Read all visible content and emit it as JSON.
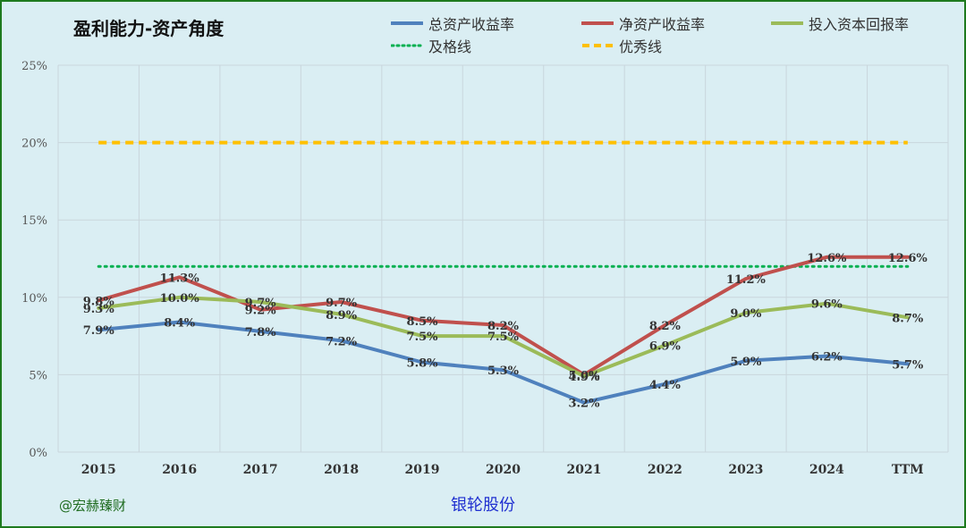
{
  "title": "盈利能力-资产角度",
  "legend": [
    {
      "label": "总资产收益率",
      "color": "#4f81bd",
      "style": "solid"
    },
    {
      "label": "净资产收益率",
      "color": "#c0504d",
      "style": "solid"
    },
    {
      "label": "投入资本回报率",
      "color": "#9bbb59",
      "style": "solid"
    },
    {
      "label": "及格线",
      "color": "#00b050",
      "style": "dotted"
    },
    {
      "label": "优秀线",
      "color": "#ffc000",
      "style": "dashed"
    }
  ],
  "footer": {
    "watermark": "@宏赫臻财",
    "company": "银轮股份"
  },
  "chart_data": {
    "type": "line",
    "title": "盈利能力-资产角度",
    "categories": [
      "2015",
      "2016",
      "2017",
      "2018",
      "2019",
      "2020",
      "2021",
      "2022",
      "2023",
      "2024",
      "TTM"
    ],
    "ylim": [
      0,
      25
    ],
    "yticks": [
      "0%",
      "5%",
      "10%",
      "15%",
      "20%",
      "25%"
    ],
    "grid": true,
    "legend_position": "top",
    "series": [
      {
        "name": "总资产收益率",
        "color": "#4f81bd",
        "values": [
          7.9,
          8.4,
          7.8,
          7.2,
          5.8,
          5.3,
          3.2,
          4.4,
          5.9,
          6.2,
          5.7
        ],
        "labels": [
          "7.9%",
          "8.4%",
          "7.8%",
          "7.2%",
          "5.8%",
          "5.3%",
          "3.2%",
          "4.4%",
          "5.9%",
          "6.2%",
          "5.7%"
        ]
      },
      {
        "name": "净资产收益率",
        "color": "#c0504d",
        "values": [
          9.8,
          11.3,
          9.2,
          9.7,
          8.5,
          8.2,
          5.0,
          8.2,
          11.2,
          12.6,
          12.6
        ],
        "labels": [
          "9.8%",
          "11.3%",
          "9.2%",
          "9.7%",
          "8.5%",
          "8.2%",
          "5.0%",
          "8.2%",
          "11.2%",
          "12.6%",
          "12.6%"
        ]
      },
      {
        "name": "投入资本回报率",
        "color": "#9bbb59",
        "values": [
          9.3,
          10.0,
          9.7,
          8.9,
          7.5,
          7.5,
          4.9,
          6.9,
          9.0,
          9.6,
          8.7
        ],
        "labels": [
          "9.3%",
          "10.0%",
          "9.7%",
          "8.9%",
          "7.5%",
          "7.5%",
          "4.9%",
          "6.9%",
          "9.0%",
          "9.6%",
          "8.7%"
        ]
      },
      {
        "name": "及格线",
        "color": "#00b050",
        "style": "dotted",
        "values": [
          12,
          12,
          12,
          12,
          12,
          12,
          12,
          12,
          12,
          12,
          12
        ]
      },
      {
        "name": "优秀线",
        "color": "#ffc000",
        "style": "dashed",
        "values": [
          20,
          20,
          20,
          20,
          20,
          20,
          20,
          20,
          20,
          20,
          20
        ]
      }
    ]
  }
}
